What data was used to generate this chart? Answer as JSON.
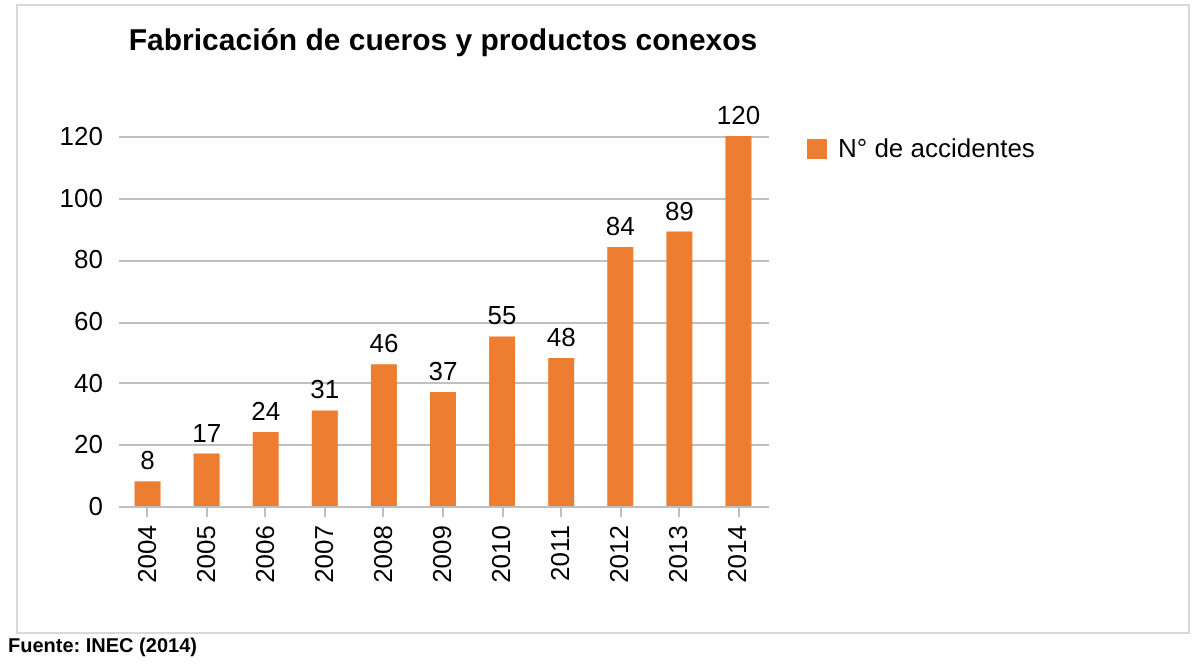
{
  "chart_data": {
    "type": "bar",
    "title": "Fabricación de cueros y productos conexos",
    "categories": [
      "2004",
      "2005",
      "2006",
      "2007",
      "2008",
      "2009",
      "2010",
      "2011",
      "2012",
      "2013",
      "2014"
    ],
    "series": [
      {
        "name": "N° de accidentes",
        "color": "#ed7d31",
        "values": [
          8,
          17,
          24,
          31,
          46,
          37,
          55,
          48,
          84,
          89,
          120
        ]
      }
    ],
    "ylim": [
      0,
      120
    ],
    "yticks": [
      0,
      20,
      40,
      60,
      80,
      100,
      120
    ],
    "grid": "y",
    "legend": "right",
    "data_labels": true,
    "annotations": [
      "Fuente: INEC (2014)"
    ]
  }
}
